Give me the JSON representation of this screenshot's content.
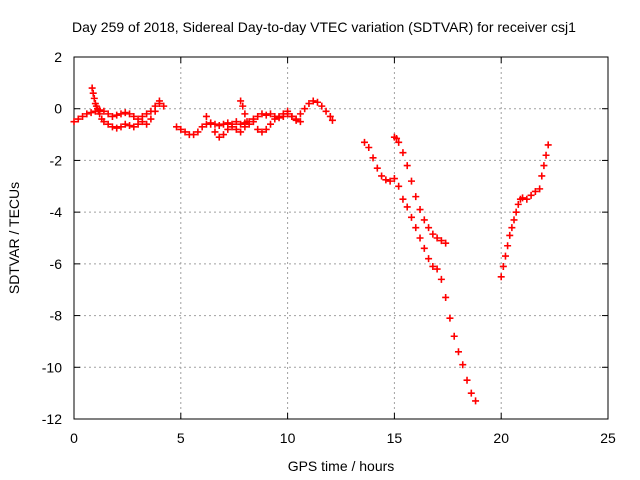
{
  "chart_data": {
    "type": "scatter",
    "title": "Day 259 of 2018, Sidereal Day-to-day VTEC variation (SDTVAR) for receiver csj1",
    "xlabel": "GPS time / hours",
    "ylabel": "SDTVAR / TECUs",
    "xlim": [
      0,
      25
    ],
    "ylim": [
      -12,
      2
    ],
    "xticks": [
      0,
      5,
      10,
      15,
      20,
      25
    ],
    "yticks": [
      2,
      0,
      -2,
      -4,
      -6,
      -8,
      -10,
      -12
    ],
    "grid": true,
    "marker": "+",
    "color": "#ff0000",
    "series": [
      {
        "x": [
          0.0,
          0.2,
          0.4,
          0.6,
          0.8,
          1.0,
          1.2,
          1.4,
          1.6,
          1.8,
          2.0,
          2.2,
          2.4,
          2.6,
          2.8,
          3.0,
          3.2,
          3.4,
          3.6,
          3.8,
          4.0,
          4.2,
          0.85,
          0.9,
          0.95,
          1.0,
          1.05,
          1.1,
          1.15,
          1.2,
          1.3,
          1.4,
          1.6,
          1.8,
          2.0,
          2.2,
          2.4,
          2.6,
          2.8,
          3.0,
          3.2,
          3.4,
          3.6,
          3.8,
          4.0
        ],
        "y": [
          -0.5,
          -0.4,
          -0.3,
          -0.2,
          -0.15,
          -0.1,
          -0.05,
          -0.1,
          -0.2,
          -0.3,
          -0.25,
          -0.2,
          -0.15,
          -0.2,
          -0.3,
          -0.4,
          -0.3,
          -0.2,
          -0.1,
          0.1,
          0.3,
          0.1,
          0.8,
          0.6,
          0.4,
          0.2,
          0.1,
          0.0,
          -0.1,
          -0.2,
          -0.4,
          -0.5,
          -0.6,
          -0.7,
          -0.75,
          -0.7,
          -0.6,
          -0.65,
          -0.7,
          -0.6,
          -0.5,
          -0.6,
          -0.4,
          -0.1,
          0.2
        ]
      },
      {
        "x": [
          4.8,
          5.0,
          5.2,
          5.4,
          5.6,
          5.8,
          6.0,
          6.2,
          6.4,
          6.6,
          6.8,
          7.0,
          7.2,
          7.4,
          7.6,
          7.8,
          8.0,
          8.2,
          8.4,
          8.6,
          8.8,
          9.0,
          9.2,
          9.4,
          9.6,
          9.8,
          10.0,
          10.2,
          10.4,
          10.6,
          10.8,
          11.0,
          11.2,
          11.4,
          11.6,
          11.8,
          12.0,
          12.1,
          6.2,
          6.4,
          6.6,
          6.8,
          7.0,
          7.2,
          7.4,
          7.6,
          7.8,
          8.0,
          8.2,
          8.4,
          8.6,
          8.8,
          9.0,
          9.2,
          9.4,
          9.6,
          9.8,
          10.0,
          10.2,
          10.4,
          10.6,
          7.8,
          7.9,
          8.0,
          8.1
        ],
        "y": [
          -0.7,
          -0.8,
          -0.9,
          -1.0,
          -1.0,
          -0.9,
          -0.7,
          -0.6,
          -0.55,
          -0.6,
          -0.65,
          -0.6,
          -0.55,
          -0.6,
          -0.5,
          -0.6,
          -0.55,
          -0.5,
          -0.4,
          -0.3,
          -0.2,
          -0.25,
          -0.2,
          -0.3,
          -0.35,
          -0.3,
          -0.2,
          -0.3,
          -0.4,
          -0.2,
          0.0,
          0.2,
          0.3,
          0.25,
          0.1,
          -0.1,
          -0.3,
          -0.45,
          -0.3,
          -0.6,
          -0.9,
          -1.1,
          -1.0,
          -0.8,
          -0.7,
          -0.8,
          -0.9,
          -0.7,
          -0.6,
          -0.5,
          -0.8,
          -0.9,
          -0.8,
          -0.6,
          -0.4,
          -0.3,
          -0.2,
          -0.1,
          -0.3,
          -0.45,
          -0.5,
          0.3,
          0.1,
          -0.2,
          -0.5
        ]
      },
      {
        "x": [
          13.6,
          13.8,
          14.0,
          14.2,
          14.4,
          14.6,
          14.8,
          15.0,
          15.2,
          15.4,
          15.6,
          15.8,
          16.0,
          16.2,
          16.4,
          16.6,
          16.8,
          17.0,
          17.2,
          17.4,
          17.6,
          17.8,
          18.0,
          18.2,
          18.4,
          18.6,
          18.8
        ],
        "y": [
          -1.3,
          -1.5,
          -1.9,
          -2.3,
          -2.6,
          -2.75,
          -2.8,
          -2.7,
          -3.0,
          -3.5,
          -3.8,
          -4.2,
          -4.6,
          -5.0,
          -5.4,
          -5.8,
          -6.1,
          -6.2,
          -6.6,
          -7.3,
          -8.1,
          -8.8,
          -9.4,
          -9.9,
          -10.5,
          -11.0,
          -11.3
        ]
      },
      {
        "x": [
          15.0,
          15.1,
          15.2,
          15.4,
          15.6,
          15.8,
          16.0,
          16.2,
          16.4,
          16.6,
          16.8,
          17.0,
          17.2,
          17.4
        ],
        "y": [
          -1.1,
          -1.15,
          -1.3,
          -1.7,
          -2.2,
          -2.8,
          -3.4,
          -3.9,
          -4.3,
          -4.6,
          -4.85,
          -5.0,
          -5.1,
          -5.2
        ]
      },
      {
        "x": [
          20.0,
          20.1,
          20.2,
          20.3,
          20.4,
          20.5,
          20.6,
          20.7,
          20.8,
          20.9,
          21.0,
          21.2,
          21.4,
          21.6,
          21.8,
          21.9,
          22.0,
          22.1,
          22.2
        ],
        "y": [
          -6.5,
          -6.1,
          -5.7,
          -5.3,
          -4.9,
          -4.6,
          -4.3,
          -4.0,
          -3.7,
          -3.5,
          -3.45,
          -3.5,
          -3.35,
          -3.2,
          -3.1,
          -2.6,
          -2.2,
          -1.8,
          -1.4
        ]
      }
    ]
  }
}
